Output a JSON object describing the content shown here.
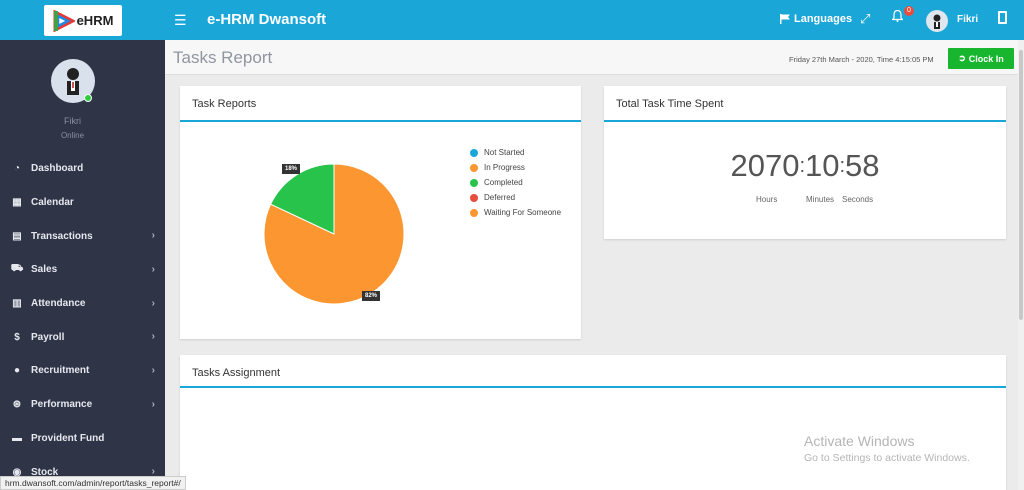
{
  "app": {
    "title": "e-HRM Dwansoft",
    "logo_text": "eHRM"
  },
  "topbar": {
    "languages_label": "Languages",
    "notification_count": "0",
    "user_name": "Fikri"
  },
  "sidebar": {
    "profile_name": "Fikri",
    "profile_status": "Online",
    "items": [
      {
        "label": "Dashboard",
        "icon": "dashboard-icon",
        "glyph": "◔",
        "chevron": false
      },
      {
        "label": "Calendar",
        "icon": "calendar-icon",
        "glyph": "▦",
        "chevron": false
      },
      {
        "label": "Transactions",
        "icon": "transactions-icon",
        "glyph": "▤",
        "chevron": true
      },
      {
        "label": "Sales",
        "icon": "cart-icon",
        "glyph": "⛟",
        "chevron": true
      },
      {
        "label": "Attendance",
        "icon": "file-icon",
        "glyph": "▥",
        "chevron": true
      },
      {
        "label": "Payroll",
        "icon": "dollar-icon",
        "glyph": "$",
        "chevron": true
      },
      {
        "label": "Recruitment",
        "icon": "globe-icon",
        "glyph": "●",
        "chevron": true
      },
      {
        "label": "Performance",
        "icon": "dribbble-icon",
        "glyph": "⊛",
        "chevron": true
      },
      {
        "label": "Provident Fund",
        "icon": "briefcase-icon",
        "glyph": "▬",
        "chevron": false
      },
      {
        "label": "Stock",
        "icon": "stock-icon",
        "glyph": "◉",
        "chevron": true
      }
    ]
  },
  "page": {
    "title": "Tasks Report",
    "datetime": "Friday 27th March - 2020, Time  4:15:05 PM",
    "clock_in_label": "Clock In"
  },
  "task_reports": {
    "title": "Task Reports"
  },
  "chart_data": {
    "type": "pie",
    "title": "",
    "legend_position": "right",
    "series": [
      {
        "name": "Not Started",
        "value": 0,
        "color": "#1ba6d8"
      },
      {
        "name": "In Progress",
        "value": 82,
        "color": "#fb9630"
      },
      {
        "name": "Completed",
        "value": 18,
        "color": "#27c34a"
      },
      {
        "name": "Deferred",
        "value": 0,
        "color": "#e74c3c"
      },
      {
        "name": "Waiting For Someone",
        "value": 0,
        "color": "#fb9630"
      }
    ],
    "data_labels": [
      "18%",
      "82%"
    ]
  },
  "time_spent": {
    "title": "Total Task Time Spent",
    "hours": "2070",
    "minutes": "10",
    "seconds": "58",
    "hours_label": "Hours",
    "minutes_label": "Minutes",
    "seconds_label": "Seconds"
  },
  "tasks_assignment": {
    "title": "Tasks Assignment"
  },
  "watermark": {
    "line1": "Activate Windows",
    "line2": "Go to Settings to activate Windows."
  },
  "statusbar": {
    "url": "hrm.dwansoft.com/admin/report/tasks_report#/"
  }
}
